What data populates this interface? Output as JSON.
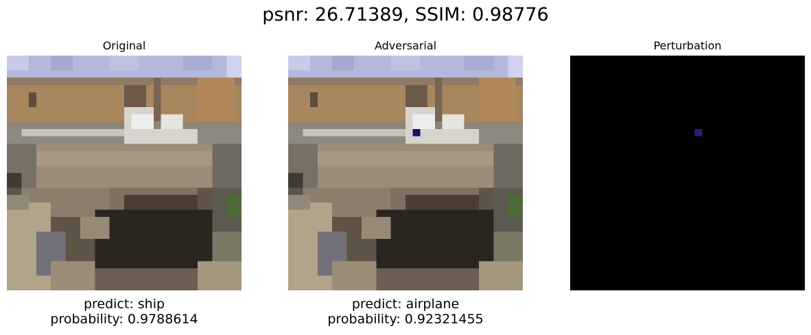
{
  "figure": {
    "suptitle": "psnr: 26.71389, SSIM: 0.98776"
  },
  "panels": [
    {
      "title": "Original",
      "caption_line1": "predict: ship",
      "caption_line2": "probability: 0.9788614"
    },
    {
      "title": "Adversarial",
      "caption_line1": "predict: airplane",
      "caption_line2": "probability: 0.92321455"
    },
    {
      "title": "Perturbation"
    }
  ],
  "colors": {
    "sky": "#b4b8dc",
    "building": "#a8865e",
    "building_dark": "#6e5a48",
    "white_deck": "#eeeeee",
    "light_rail": "#c6c4b8",
    "hull": "#9a8d7a",
    "hull_dark": "#5e5548",
    "shadow": "#2b2520",
    "ground": "#b0a48a",
    "grass": "#4e6a36",
    "perturb_pixel_adv": "#12106a",
    "perturb_pixel": "#241f7a",
    "perturb_bg": "#000000"
  }
}
